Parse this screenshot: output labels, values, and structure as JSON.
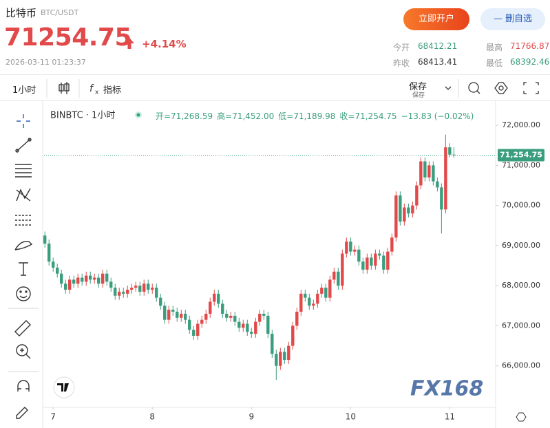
{
  "header": {
    "name": "比特币",
    "pair": "BTC/USDT",
    "price": "71254.75",
    "change": "+4.14%",
    "time": "2026-03-11 01:23:37",
    "open_button": "立即开户",
    "watch_button": "删自选",
    "stats": [
      {
        "label": "今开",
        "value": "68412.21"
      },
      {
        "label": "最高",
        "value": "71766.87"
      },
      {
        "label": "昨收",
        "value": "68413.41"
      },
      {
        "label": "最低",
        "value": "68392.46"
      }
    ]
  },
  "toolbar": {
    "interval": "1小时",
    "indicators": "指标",
    "save": "保存",
    "save_sub": "保存"
  },
  "chart_data": {
    "type": "candlestick",
    "title": "BINBTC · 1小时",
    "ohlc_legend": [
      "开=71,268.59",
      "高=71,452.00",
      "低=71,189.98",
      "收=71,254.75",
      "−13.83 (−0.02%)"
    ],
    "open": [
      69250,
      69050,
      68600,
      68450,
      68300,
      68050,
      67900,
      68150,
      68050,
      68200,
      68100,
      68250,
      68150,
      68200,
      68050,
      68300,
      68100,
      67950,
      67750,
      67850,
      67800,
      67900,
      67950,
      68000,
      67850,
      68050,
      67900,
      67950,
      67700,
      67500,
      67150,
      67400,
      67350,
      67200,
      67300,
      67150,
      66900,
      66750,
      67050,
      67150,
      67300,
      67600,
      67800,
      67550,
      67300,
      67200,
      67250,
      67100,
      66950,
      67050,
      66850,
      66800,
      67100,
      67300,
      67250,
      66800,
      66300,
      66000,
      66350,
      66150,
      66500,
      67000,
      67350,
      67800,
      67700,
      67500,
      67550,
      67800,
      67950,
      67700,
      68150,
      68350,
      68000,
      68800,
      69100,
      68850,
      68900,
      68600,
      68400,
      68700,
      68500,
      68800,
      68750,
      68400,
      68850,
      69200,
      70250,
      69600,
      69950,
      69800,
      70000,
      70500,
      71100,
      70700,
      71000,
      70600,
      70450,
      69900,
      71450,
      71268.59
    ],
    "high": [
      69350,
      69150,
      68700,
      68550,
      68400,
      68150,
      68250,
      68250,
      68300,
      68300,
      68350,
      68350,
      68300,
      68300,
      68400,
      68400,
      68200,
      68050,
      67950,
      67950,
      68000,
      68050,
      68100,
      68100,
      68150,
      68150,
      68050,
      68050,
      67800,
      67600,
      67500,
      67500,
      67450,
      67400,
      67400,
      67250,
      67000,
      67150,
      67250,
      67400,
      67700,
      67900,
      67900,
      67650,
      67400,
      67350,
      67350,
      67200,
      67150,
      67150,
      66950,
      67200,
      67400,
      67400,
      67350,
      66900,
      66400,
      66450,
      66450,
      66600,
      67100,
      67450,
      67900,
      67900,
      67800,
      67650,
      67900,
      68050,
      68050,
      68250,
      68450,
      68450,
      68900,
      69200,
      69200,
      69000,
      69000,
      68700,
      68800,
      68800,
      68900,
      68900,
      68850,
      68950,
      69300,
      70350,
      70350,
      70050,
      70050,
      70100,
      70600,
      71200,
      71200,
      71100,
      71100,
      70700,
      70550,
      71766.87,
      71550,
      71452
    ],
    "low": [
      68950,
      68500,
      68350,
      68200,
      67950,
      67800,
      67800,
      67950,
      67950,
      68000,
      68000,
      68050,
      68050,
      67950,
      67950,
      68000,
      67850,
      67650,
      67650,
      67700,
      67700,
      67800,
      67850,
      67750,
      67750,
      67800,
      67800,
      67600,
      67400,
      67050,
      67050,
      67250,
      67100,
      67100,
      67050,
      66800,
      66650,
      66650,
      66950,
      67050,
      67200,
      67500,
      67450,
      67200,
      67100,
      67100,
      67000,
      66850,
      66850,
      66750,
      66700,
      66700,
      67000,
      67150,
      66700,
      66200,
      65650,
      65900,
      66050,
      66050,
      66400,
      66900,
      67250,
      67600,
      67400,
      67400,
      67450,
      67700,
      67600,
      67600,
      68050,
      67900,
      67900,
      68700,
      68750,
      68750,
      68500,
      68300,
      68300,
      68400,
      68400,
      68650,
      68300,
      68300,
      68750,
      69100,
      69500,
      69500,
      69700,
      69700,
      69900,
      70400,
      70600,
      70600,
      70500,
      70350,
      69300,
      69800,
      71200,
      71189.98
    ],
    "close": [
      69050,
      68600,
      68450,
      68300,
      68050,
      67900,
      68150,
      68050,
      68200,
      68100,
      68250,
      68150,
      68200,
      68050,
      68300,
      68100,
      67950,
      67750,
      67850,
      67800,
      67900,
      67950,
      68000,
      67850,
      68050,
      67900,
      67950,
      67700,
      67500,
      67150,
      67400,
      67350,
      67200,
      67300,
      67150,
      66900,
      66750,
      67050,
      67150,
      67300,
      67600,
      67800,
      67550,
      67300,
      67200,
      67250,
      67100,
      66950,
      67050,
      66850,
      66800,
      67100,
      67300,
      67250,
      66800,
      66300,
      66000,
      66350,
      66150,
      66500,
      67000,
      67350,
      67800,
      67700,
      67500,
      67550,
      67800,
      67950,
      67700,
      68150,
      68350,
      68000,
      68800,
      69100,
      68850,
      68900,
      68600,
      68400,
      68700,
      68500,
      68800,
      68750,
      68400,
      68850,
      69200,
      70250,
      69600,
      69950,
      69800,
      70000,
      70500,
      71100,
      70700,
      71000,
      70600,
      70450,
      69900,
      71450,
      71268.59,
      71254.75
    ],
    "up_color": "#e2494a",
    "down_color": "#3a9d7e",
    "xlim": [
      -0.2,
      109.1
    ],
    "xticks": [
      {
        "value": 2,
        "label": "7"
      },
      {
        "value": 26,
        "label": "8"
      },
      {
        "value": 50,
        "label": "9"
      },
      {
        "value": 74,
        "label": "10"
      },
      {
        "value": 98,
        "label": "11"
      }
    ],
    "ylim": [
      65000,
      72550
    ],
    "yticks": [
      {
        "value": 66000,
        "label": "66,000.00"
      },
      {
        "value": 67000,
        "label": "67,000.00"
      },
      {
        "value": 68000,
        "label": "68,000.00"
      },
      {
        "value": 69000,
        "label": "69,000.00"
      },
      {
        "value": 70000,
        "label": "70,000.00"
      },
      {
        "value": 71000,
        "label": "71,000.00"
      },
      {
        "value": 72000,
        "label": "72,000.00"
      }
    ],
    "last_price": 71254.75,
    "last_price_label": "71,254.75",
    "watermark": "FX168"
  }
}
